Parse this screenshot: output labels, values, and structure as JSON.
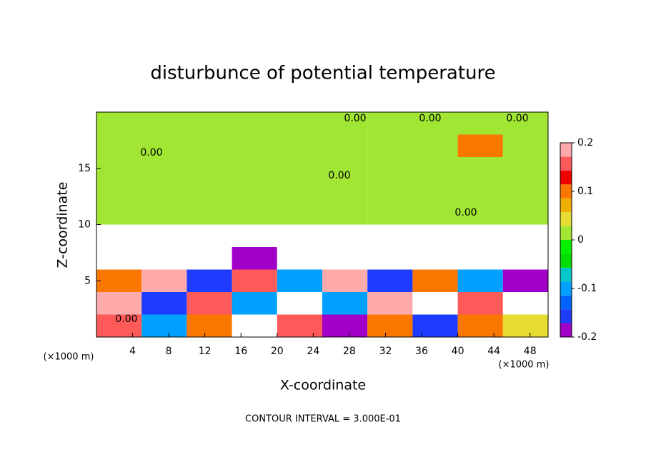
{
  "chart_data": {
    "type": "heatmap",
    "title": "disturbunce of potential temperature",
    "x_label": "X-coordinate",
    "y_label": "Z-coordinate",
    "x_unit": "(×1000 m)",
    "y_unit": "(×1000 m)",
    "footnote": "CONTOUR INTERVAL = 3.000E-01",
    "contour_labels": [
      "0.00",
      "0.00",
      "0.00",
      "0.00",
      "0.00",
      "0.00",
      "0.00"
    ],
    "x": [
      2.5,
      7.5,
      12.5,
      17.5,
      22.5,
      27.5,
      32.5,
      37.5,
      42.5,
      47.5
    ],
    "z": [
      1,
      3,
      5,
      7,
      9,
      11,
      13,
      15,
      17,
      19
    ],
    "values": [
      [
        0.15,
        -0.1,
        0.1,
        -0.3,
        0.15,
        -0.2,
        0.1,
        -0.15,
        0.1,
        0.05
      ],
      [
        0.2,
        -0.15,
        0.15,
        -0.1,
        0.3,
        -0.1,
        0.2,
        -0.3,
        0.15,
        -0.3
      ],
      [
        0.1,
        0.2,
        -0.15,
        0.15,
        -0.1,
        0.2,
        -0.15,
        0.1,
        -0.1,
        -0.2
      ],
      [
        -0.3,
        -0.4,
        -0.3,
        -0.2,
        -0.3,
        -0.25,
        -0.3,
        -0.3,
        -0.3,
        -0.4
      ],
      [
        -0.3,
        -0.4,
        -0.35,
        -0.4,
        -0.3,
        -0.35,
        -0.3,
        -0.3,
        -0.3,
        -0.35
      ],
      [
        0,
        0,
        0,
        0,
        0,
        0,
        0,
        0,
        0,
        0
      ],
      [
        0,
        0,
        0,
        0,
        0,
        0,
        0,
        0,
        0,
        0
      ],
      [
        0,
        0,
        0,
        0,
        0,
        0,
        0,
        0,
        0,
        0
      ],
      [
        0,
        0,
        0,
        0,
        0,
        0,
        0,
        0,
        0.1,
        0
      ],
      [
        0,
        0,
        0,
        0,
        0,
        0,
        0,
        0,
        0,
        0
      ]
    ],
    "xlim": [
      0,
      50
    ],
    "ylim": [
      0,
      20
    ],
    "xticks": [
      4,
      8,
      12,
      16,
      20,
      24,
      28,
      32,
      36,
      40,
      44,
      48
    ],
    "yticks": [
      5,
      10,
      15
    ],
    "clim": [
      -0.2,
      0.2
    ],
    "cticks": [
      -0.2,
      -0.1,
      0,
      0.1,
      0.2
    ],
    "colors": [
      "#a000c8",
      "#1e3cff",
      "#0064ff",
      "#00a0ff",
      "#00c8c8",
      "#00dc00",
      "#00f000",
      "#a0e632",
      "#e6dc32",
      "#f0af00",
      "#fa7800",
      "#f00000",
      "#ff5a5a",
      "#ffaaaa"
    ],
    "out_of_range_color": "#ffffff"
  }
}
